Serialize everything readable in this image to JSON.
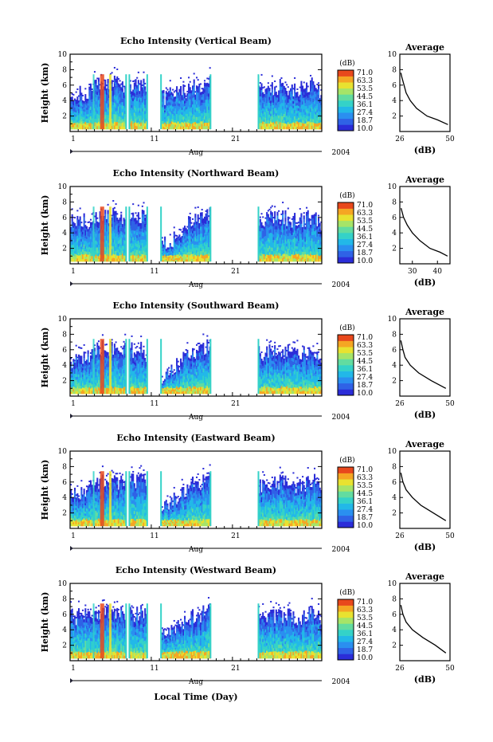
{
  "colors": {
    "scale": [
      "#2b2dd8",
      "#2f62e6",
      "#2a8ff0",
      "#22b8e8",
      "#34d2c8",
      "#62dca0",
      "#a6e468",
      "#e8e230",
      "#f5a623",
      "#e8481c"
    ],
    "axis": "#000000",
    "background": "#ffffff"
  },
  "figure": {
    "xlabel": "Local Time (Day)",
    "month_label": "Aug",
    "year_label": "2004",
    "colorbar_unit": "(dB)",
    "colorbar_ticks": [
      "71.0",
      "63.3",
      "53.5",
      "44.5",
      "36.1",
      "27.4",
      "18.7",
      "10.0"
    ],
    "avg_title": "Average",
    "avg_xlabel": "(dB)"
  },
  "chart_data": [
    {
      "type": "heatmap",
      "title": "Echo Intensity (Vertical Beam)",
      "ylabel": "Height (km)",
      "x_ticks": [
        "1",
        "11",
        "21"
      ],
      "y_ticks": [
        "10",
        "8",
        "6",
        "4",
        "2"
      ],
      "ylim": [
        0,
        10
      ],
      "xlim": [
        1,
        32
      ],
      "data_gaps_days": [
        [
          7.9,
          8.3
        ],
        [
          10.5,
          12.2
        ],
        [
          18.3,
          24.2
        ]
      ],
      "top_km": [
        [
          1,
          5.5
        ],
        [
          3,
          6.2
        ],
        [
          5,
          7.4
        ],
        [
          6,
          7.3
        ],
        [
          8,
          7.0
        ],
        [
          10,
          7.3
        ],
        [
          12,
          5.2
        ],
        [
          14,
          6.0
        ],
        [
          16,
          6.7
        ],
        [
          18,
          7.4
        ],
        [
          24.5,
          6.6
        ],
        [
          27,
          7.0
        ],
        [
          29,
          6.5
        ],
        [
          31,
          7.2
        ],
        [
          32,
          6.0
        ]
      ],
      "clim": [
        10.0,
        71.0
      ],
      "colorbar_label": "(dB)",
      "average_profile": {
        "xlim": [
          26,
          50
        ],
        "x_ticks": [
          "26",
          "50"
        ],
        "height_km": [
          7.6,
          7.0,
          6.0,
          5.0,
          4.0,
          3.0,
          2.0,
          1.5,
          0.9
        ],
        "db": [
          26.5,
          27,
          28,
          29,
          31,
          34,
          39,
          44,
          49
        ]
      }
    },
    {
      "type": "heatmap",
      "title": "Echo Intensity (Northward Beam)",
      "ylabel": "Height (km)",
      "x_ticks": [
        "1",
        "11",
        "21"
      ],
      "y_ticks": [
        "10",
        "8",
        "6",
        "4",
        "2"
      ],
      "ylim": [
        0,
        10
      ],
      "xlim": [
        1,
        32
      ],
      "data_gaps_days": [
        [
          7.9,
          8.3
        ],
        [
          10.5,
          12.2
        ],
        [
          18.3,
          24.2
        ]
      ],
      "top_km": [
        [
          1,
          6.5
        ],
        [
          3,
          6.6
        ],
        [
          5,
          7.4
        ],
        [
          6,
          7.3
        ],
        [
          8,
          7.0
        ],
        [
          10,
          7.3
        ],
        [
          12,
          3.2
        ],
        [
          14,
          4.5
        ],
        [
          16,
          6.8
        ],
        [
          18,
          7.4
        ],
        [
          24.5,
          6.8
        ],
        [
          27,
          7.1
        ],
        [
          29,
          6.6
        ],
        [
          31,
          7.2
        ],
        [
          32,
          6.4
        ]
      ],
      "clim": [
        10.0,
        71.0
      ],
      "colorbar_label": "(dB)",
      "average_profile": {
        "xlim": [
          25,
          45
        ],
        "x_ticks": [
          "30",
          "40"
        ],
        "height_km": [
          7.2,
          6.0,
          5.0,
          4.0,
          3.0,
          2.0,
          1.5,
          1.0
        ],
        "db": [
          25.5,
          26.5,
          28,
          30,
          33,
          37,
          41,
          44
        ]
      }
    },
    {
      "type": "heatmap",
      "title": "Echo Intensity (Southward Beam)",
      "ylabel": "Height (km)",
      "x_ticks": [
        "1",
        "11",
        "21"
      ],
      "y_ticks": [
        "10",
        "8",
        "6",
        "4",
        "2"
      ],
      "ylim": [
        0,
        10
      ],
      "xlim": [
        1,
        32
      ],
      "data_gaps_days": [
        [
          7.9,
          8.3
        ],
        [
          10.5,
          12.2
        ],
        [
          18.3,
          24.2
        ]
      ],
      "top_km": [
        [
          1,
          5.5
        ],
        [
          3,
          6.2
        ],
        [
          5,
          7.4
        ],
        [
          6,
          7.3
        ],
        [
          8,
          7.0
        ],
        [
          10,
          7.3
        ],
        [
          12,
          3.5
        ],
        [
          14,
          5.0
        ],
        [
          16,
          6.8
        ],
        [
          18,
          7.4
        ],
        [
          24.5,
          6.6
        ],
        [
          27,
          7.0
        ],
        [
          29,
          6.5
        ],
        [
          31,
          7.2
        ],
        [
          32,
          6.2
        ]
      ],
      "clim": [
        10.0,
        71.0
      ],
      "colorbar_label": "(dB)",
      "average_profile": {
        "xlim": [
          26,
          50
        ],
        "x_ticks": [
          "26",
          "50"
        ],
        "height_km": [
          7.2,
          6.0,
          5.0,
          4.0,
          3.0,
          2.0,
          1.0
        ],
        "db": [
          26.5,
          27.5,
          28.5,
          31,
          35,
          41,
          48
        ]
      }
    },
    {
      "type": "heatmap",
      "title": "Echo Intensity (Eastward Beam)",
      "ylabel": "Height (km)",
      "x_ticks": [
        "1",
        "11",
        "21"
      ],
      "y_ticks": [
        "10",
        "8",
        "6",
        "4",
        "2"
      ],
      "ylim": [
        0,
        10
      ],
      "xlim": [
        1,
        32
      ],
      "data_gaps_days": [
        [
          7.9,
          8.3
        ],
        [
          10.5,
          12.2
        ],
        [
          18.3,
          24.2
        ]
      ],
      "top_km": [
        [
          1,
          5.5
        ],
        [
          3,
          6.2
        ],
        [
          5,
          7.4
        ],
        [
          6,
          7.3
        ],
        [
          8,
          7.0
        ],
        [
          10,
          7.3
        ],
        [
          12,
          3.5
        ],
        [
          14,
          5.0
        ],
        [
          16,
          6.8
        ],
        [
          18,
          7.4
        ],
        [
          24.5,
          6.6
        ],
        [
          27,
          7.0
        ],
        [
          29,
          6.5
        ],
        [
          31,
          7.2
        ],
        [
          32,
          6.2
        ]
      ],
      "clim": [
        10.0,
        71.0
      ],
      "colorbar_label": "(dB)",
      "average_profile": {
        "xlim": [
          26,
          50
        ],
        "x_ticks": [
          "26",
          "50"
        ],
        "height_km": [
          7.2,
          6.0,
          5.0,
          4.0,
          3.0,
          2.0,
          1.0
        ],
        "db": [
          26.5,
          27.5,
          29,
          32,
          36,
          42,
          48
        ]
      }
    },
    {
      "type": "heatmap",
      "title": "Echo Intensity (Westward Beam)",
      "ylabel": "Height (km)",
      "x_ticks": [
        "1",
        "11",
        "21"
      ],
      "y_ticks": [
        "10",
        "8",
        "6",
        "4",
        "2"
      ],
      "ylim": [
        0,
        10
      ],
      "xlim": [
        1,
        32
      ],
      "data_gaps_days": [
        [
          7.9,
          8.3
        ],
        [
          10.5,
          12.2
        ],
        [
          18.3,
          24.2
        ]
      ],
      "top_km": [
        [
          1,
          6.8
        ],
        [
          3,
          6.8
        ],
        [
          5,
          7.4
        ],
        [
          6,
          7.3
        ],
        [
          8,
          7.0
        ],
        [
          10,
          7.3
        ],
        [
          12,
          4.5
        ],
        [
          14,
          5.5
        ],
        [
          16,
          6.8
        ],
        [
          18,
          7.4
        ],
        [
          24.5,
          6.8
        ],
        [
          27,
          7.1
        ],
        [
          29,
          6.6
        ],
        [
          31,
          7.2
        ],
        [
          32,
          6.4
        ]
      ],
      "clim": [
        10.0,
        71.0
      ],
      "colorbar_label": "(dB)",
      "average_profile": {
        "xlim": [
          26,
          50
        ],
        "x_ticks": [
          "26",
          "50"
        ],
        "height_km": [
          7.2,
          6.0,
          5.0,
          4.0,
          3.0,
          2.0,
          1.0
        ],
        "db": [
          26.5,
          27.5,
          29,
          32,
          37,
          43,
          48
        ]
      }
    }
  ]
}
